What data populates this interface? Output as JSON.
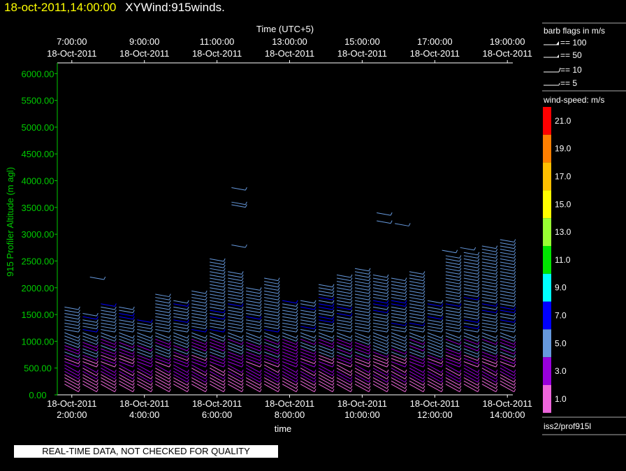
{
  "header": {
    "date_time": "18-oct-2011,14:00:00",
    "product": "XYWind:915winds."
  },
  "banner": "REAL-TIME DATA, NOT CHECKED FOR QUALITY",
  "legend": {
    "barb_title": "barb flags in m/s",
    "barbs": [
      "== 100",
      "== 50",
      "== 10",
      "== 5"
    ],
    "speed_title": "wind-speed: m/s",
    "speed_levels": [
      {
        "label": "21.0",
        "color": "#ff0000"
      },
      {
        "label": "19.0",
        "color": "#ff7f00"
      },
      {
        "label": "17.0",
        "color": "#ffbf00"
      },
      {
        "label": "15.0",
        "color": "#ffff00"
      },
      {
        "label": "13.0",
        "color": "#99ff33"
      },
      {
        "label": "11.0",
        "color": "#00e600"
      },
      {
        "label": "9.0",
        "color": "#00ffff"
      },
      {
        "label": "7.0",
        "color": "#0000ff"
      },
      {
        "label": "5.0",
        "color": "#6699dd"
      },
      {
        "label": "3.0",
        "color": "#9900dd"
      },
      {
        "label": "1.0",
        "color": "#ee66dd"
      }
    ],
    "source": "iss2/prof915l"
  },
  "chart_data": {
    "type": "wind-barb profile",
    "top_axis_title": "Time (UTC+5)",
    "top_ticks": [
      {
        "time": "7:00:00",
        "date": "18-Oct-2011"
      },
      {
        "time": "9:00:00",
        "date": "18-Oct-2011"
      },
      {
        "time": "11:00:00",
        "date": "18-Oct-2011"
      },
      {
        "time": "13:00:00",
        "date": "18-Oct-2011"
      },
      {
        "time": "15:00:00",
        "date": "18-Oct-2011"
      },
      {
        "time": "17:00:00",
        "date": "18-Oct-2011"
      },
      {
        "time": "19:00:00",
        "date": "18-Oct-2011"
      }
    ],
    "bottom_axis_title": "time",
    "bottom_ticks": [
      {
        "time": "2:00:00",
        "date": "18-Oct-2011"
      },
      {
        "time": "4:00:00",
        "date": "18-Oct-2011"
      },
      {
        "time": "6:00:00",
        "date": "18-Oct-2011"
      },
      {
        "time": "8:00:00",
        "date": "18-Oct-2011"
      },
      {
        "time": "10:00:00",
        "date": "18-Oct-2011"
      },
      {
        "time": "12:00:00",
        "date": "18-Oct-2011"
      },
      {
        "time": "14:00:00",
        "date": "18-Oct-2011"
      }
    ],
    "ylabel": "915 Profiler Altitude (m agl)",
    "y_ticks": [
      "0.00",
      "500.00",
      "1000.00",
      "1500.00",
      "2000.00",
      "2500.00",
      "3000.00",
      "3500.00",
      "4000.00",
      "4500.00",
      "5000.00",
      "5500.00",
      "6000.00"
    ],
    "ylim": [
      0,
      6200
    ],
    "xlim_hours_utc": [
      1.6,
      14.15
    ],
    "profile_times_utc": [
      1.8,
      2.3,
      2.8,
      3.3,
      3.8,
      4.3,
      4.8,
      5.3,
      5.8,
      6.3,
      6.8,
      7.3,
      7.8,
      8.3,
      8.8,
      9.3,
      9.8,
      10.3,
      10.8,
      11.3,
      11.8,
      12.3,
      12.8,
      13.3,
      13.8
    ],
    "profile_tops_m": [
      1650,
      1550,
      1750,
      1650,
      1400,
      1900,
      1800,
      1950,
      2550,
      2350,
      2050,
      2200,
      1800,
      1800,
      2100,
      2250,
      2400,
      2250,
      2200,
      2300,
      1800,
      2600,
      2700,
      2800,
      2950
    ],
    "isolated_barbs": [
      {
        "t": 2.5,
        "alt": 2200
      },
      {
        "t": 6.4,
        "alt": 2800
      },
      {
        "t": 6.4,
        "alt": 3550
      },
      {
        "t": 6.4,
        "alt": 3600
      },
      {
        "t": 6.4,
        "alt": 3870
      },
      {
        "t": 10.4,
        "alt": 3250
      },
      {
        "t": 10.4,
        "alt": 3400
      },
      {
        "t": 10.9,
        "alt": 3200
      },
      {
        "t": 12.2,
        "alt": 2700
      },
      {
        "t": 12.7,
        "alt": 2750
      }
    ],
    "range_gate_m": 60,
    "speed_profile": "speeds near 1-3 m/s (violet/magenta) below ~800 m, 5 m/s (light blue) above, occasional 7 m/s (blue) bands near 1200-1800 m",
    "annotation": ""
  }
}
